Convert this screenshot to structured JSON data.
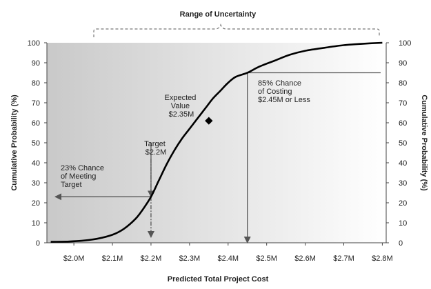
{
  "chart_data": {
    "type": "line",
    "title": "Range of Uncertainty",
    "xlabel": "Predicted Total Project Cost",
    "ylabel": "Cumulative Probability (%)",
    "ylabel_right": "Cumulative Probability (%)",
    "xlim": [
      1.93,
      2.81
    ],
    "ylim": [
      0,
      100
    ],
    "x_ticks": [
      2.0,
      2.1,
      2.2,
      2.3,
      2.4,
      2.5,
      2.6,
      2.7,
      2.8
    ],
    "x_tick_labels": [
      "$2.0M",
      "$2.1M",
      "$2.2M",
      "$2.3M",
      "$2.4M",
      "$2.5M",
      "$2.6M",
      "$2.7M",
      "$2.8M"
    ],
    "y_ticks": [
      0,
      10,
      20,
      30,
      40,
      50,
      60,
      70,
      80,
      90,
      100
    ],
    "y_tick_labels": [
      "0",
      "10",
      "20",
      "30",
      "40",
      "50",
      "60",
      "70",
      "80",
      "90",
      "100"
    ],
    "grid": false,
    "uncertainty_range": [
      2.03,
      2.8
    ],
    "series": [
      {
        "x": [
          1.94,
          1.98,
          2.02,
          2.06,
          2.1,
          2.13,
          2.16,
          2.18,
          2.2,
          2.22,
          2.24,
          2.26,
          2.28,
          2.3,
          2.32,
          2.34,
          2.36,
          2.38,
          2.4,
          2.42,
          2.45,
          2.48,
          2.52,
          2.56,
          2.6,
          2.65,
          2.7,
          2.75,
          2.8
        ],
        "y": [
          0.5,
          0.6,
          1,
          2,
          4,
          7,
          12,
          17,
          23,
          31,
          39,
          46,
          52,
          57,
          62,
          67,
          72,
          76,
          80,
          83,
          85,
          88,
          91,
          94,
          96,
          97.5,
          98.8,
          99.5,
          100
        ],
        "color": "#000000"
      }
    ],
    "markers": [
      {
        "label": "Expected Value",
        "x": 2.35,
        "y": 61
      }
    ],
    "annotations": [
      {
        "lines": [
          "Expected",
          "Value",
          "$2.35M"
        ]
      },
      {
        "lines": [
          "Target",
          "$2.2M"
        ]
      },
      {
        "lines": [
          "23% Chance",
          "of Meeting",
          "Target"
        ]
      },
      {
        "lines": [
          "85% Chance",
          "of Costing",
          "$2.45M or Less"
        ]
      }
    ],
    "reference_lines": [
      {
        "kind": "vertical",
        "x": 2.2,
        "y_from": 23,
        "y_to": 50,
        "arrow": "down"
      },
      {
        "kind": "horizontal",
        "y": 23,
        "x_from": 2.2,
        "x_to": 1.93,
        "arrow": "left"
      },
      {
        "kind": "vertical",
        "x": 2.45,
        "y_from": 85,
        "y_to": 0,
        "arrow": "down"
      },
      {
        "kind": "horizontal",
        "y": 85,
        "x_from": 2.45,
        "x_to": 2.81,
        "arrow": "none"
      }
    ],
    "colors": {
      "plot_gradient_left": "#c9c9c9",
      "plot_gradient_right": "#ffffff",
      "curve": "#000000",
      "reference": "#555555",
      "axis": "#444444"
    }
  }
}
